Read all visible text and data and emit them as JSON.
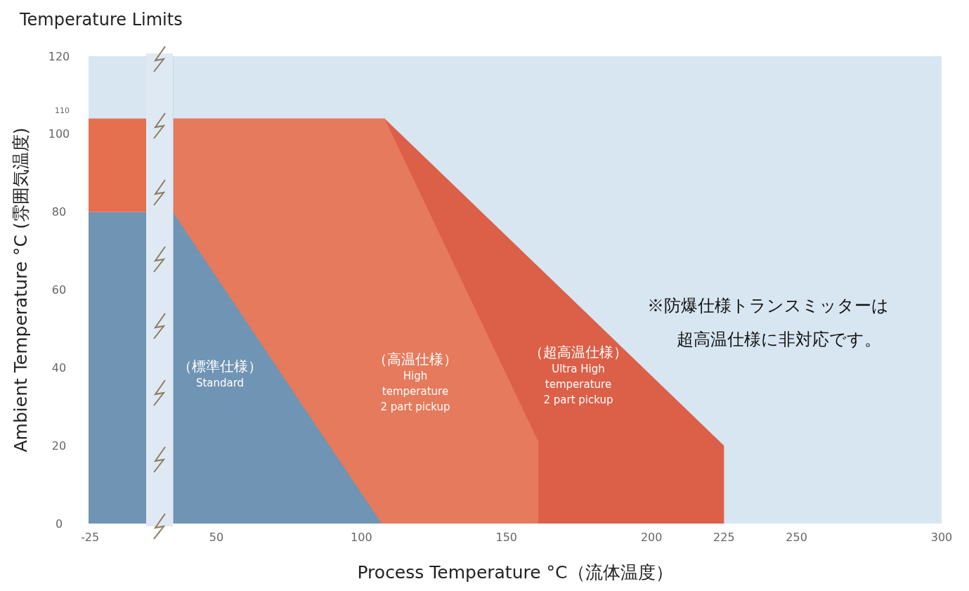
{
  "chart_data": [
    {
      "type": "bar",
      "title": "Temperature Limits",
      "ylabel": "Ambient Temperature °C (雰囲気温度)",
      "stacked": true,
      "categories": [
        "-25"
      ],
      "ylim": [
        0,
        120
      ],
      "yticks": [
        0,
        20,
        40,
        60,
        80,
        100,
        120
      ],
      "series": [
        {
          "color": "#7094b3",
          "values": [
            80
          ]
        },
        {
          "color": "#e5704f",
          "values": [
            24
          ]
        }
      ],
      "annotations": [
        "110"
      ]
    },
    {
      "type": "area",
      "xlabel": "Process Temperature °C（流体温度）",
      "xlim": [
        35,
        300
      ],
      "xticks": [
        50,
        100,
        150,
        200,
        225,
        250,
        300
      ],
      "ylim": [
        0,
        120
      ],
      "tick_labels": "x",
      "series": [
        {
          "name": "（超高温仕様）\nUltra High\ntemperature\n2 part pickup",
          "color": "#dc5f48",
          "x": [
            35,
            108,
            225,
            225
          ],
          "values": [
            104,
            104,
            20,
            0
          ]
        },
        {
          "name": "（高温仕様）\nHigh\ntemperature\n2 part pickup",
          "color": "#e67a5c",
          "x": [
            35,
            108,
            161,
            161
          ],
          "values": [
            104,
            104,
            21,
            0
          ]
        },
        {
          "name": "（標準仕様）\nStandard",
          "color": "#7094b3",
          "x": [
            35,
            107
          ],
          "values": [
            80,
            0
          ]
        }
      ],
      "annotations": [
        "※防爆仕様トランスミッターは超高温仕様に非対応です。"
      ]
    }
  ]
}
